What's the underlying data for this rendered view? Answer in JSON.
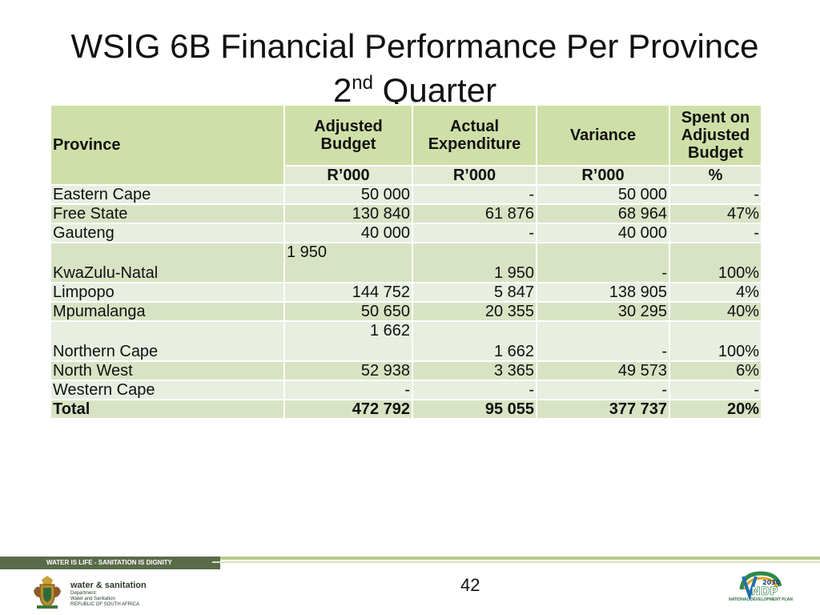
{
  "title": {
    "line1": "WSIG 6B Financial Performance Per Province",
    "line2_prefix": "2",
    "line2_sup": "nd",
    "line2_suffix": " Quarter"
  },
  "table": {
    "headers": {
      "province": "Province",
      "adjusted_budget": "Adjusted Budget",
      "actual_expenditure": "Actual Expenditure",
      "variance": "Variance",
      "spent_on_adjusted_budget": "Spent on Adjusted Budget"
    },
    "units": [
      "R’000",
      "R’000",
      "R’000",
      "%"
    ],
    "rows": [
      {
        "province": "Eastern Cape",
        "adjusted_budget": "50 000",
        "actual_expenditure": "-",
        "variance": "50 000",
        "spent": "-"
      },
      {
        "province": "Free State",
        "adjusted_budget": "130 840",
        "actual_expenditure": "61 876",
        "variance": "68 964",
        "spent": "47%"
      },
      {
        "province": "Gauteng",
        "adjusted_budget": "40 000",
        "actual_expenditure": "-",
        "variance": "40 000",
        "spent": "-"
      },
      {
        "province": "KwaZulu-Natal",
        "adjusted_budget": "1 950",
        "actual_expenditure": "1 950",
        "variance": "-",
        "spent": "100%"
      },
      {
        "province": "Limpopo",
        "adjusted_budget": "144 752",
        "actual_expenditure": "5 847",
        "variance": "138 905",
        "spent": "4%"
      },
      {
        "province": "Mpumalanga",
        "adjusted_budget": "50 650",
        "actual_expenditure": "20 355",
        "variance": "30 295",
        "spent": "40%"
      },
      {
        "province": "Northern Cape",
        "adjusted_budget": "1 662",
        "actual_expenditure": "1 662",
        "variance": "-",
        "spent": "100%"
      },
      {
        "province": "North West",
        "adjusted_budget": "52 938",
        "actual_expenditure": "3 365",
        "variance": "49 573",
        "spent": "6%"
      },
      {
        "province": "Western Cape",
        "adjusted_budget": "-",
        "actual_expenditure": "-",
        "variance": "-",
        "spent": "-"
      }
    ],
    "total": {
      "province": "Total",
      "adjusted_budget": "472 792",
      "actual_expenditure": "95 055",
      "variance": "377 737",
      "spent": "20%"
    }
  },
  "footer": {
    "slogan": "WATER IS LIFE - SANITATION IS DIGNITY",
    "page_number": "42",
    "dept_name": "water & sanitation",
    "dept_line1": "Department:",
    "dept_line2": "Water and Sanitation",
    "dept_line3": "REPUBLIC OF SOUTH AFRICA",
    "ndp_caption": "NATIONAL DEVELOPMENT PLAN",
    "ndp_year": "2030",
    "ndp_logo_text": "NDP"
  },
  "colors": {
    "header_green": "#cfdfa8",
    "row_light": "#e8eee0",
    "row_dark": "#d8e3c4",
    "banner_dark": "#5a6b49",
    "banner_light": "#b8c98b"
  }
}
